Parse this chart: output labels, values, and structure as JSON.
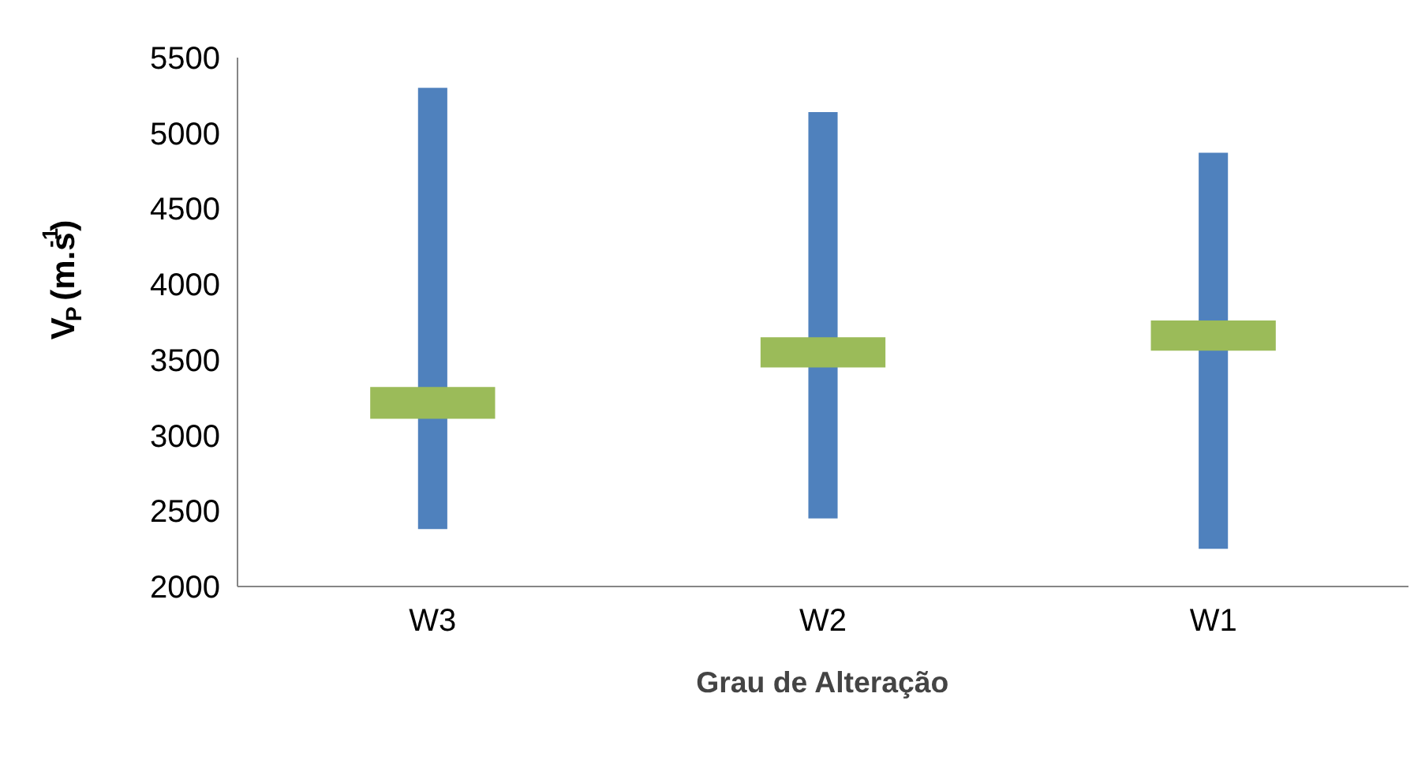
{
  "chart_data": {
    "type": "bar",
    "xlabel": "Grau de Alteração",
    "ylabel": "V$_{P}$ (m.s$^{-1}$)",
    "categories": [
      "W3",
      "W2",
      "W1"
    ],
    "ylim": [
      2000,
      5500
    ],
    "yticks": [
      2000,
      2500,
      3000,
      3500,
      4000,
      4500,
      5000,
      5500
    ],
    "grid": false,
    "series": [
      {
        "color": "#4f81bd",
        "base": [
          2380,
          2450,
          2250
        ],
        "values": [
          2920,
          2690,
          2620
        ]
      },
      {
        "color": "#9bbb59",
        "base": [
          3110,
          3450,
          3560
        ],
        "values": [
          210,
          200,
          200
        ]
      }
    ]
  }
}
